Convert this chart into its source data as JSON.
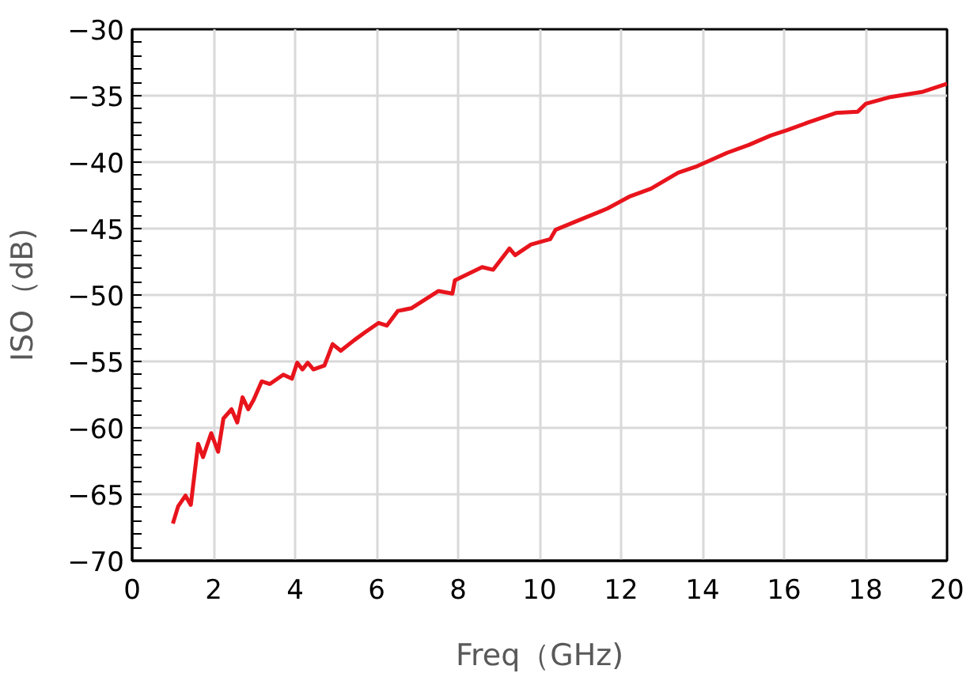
{
  "chart_data": {
    "type": "line",
    "xlabel": "Freq（GHz)",
    "ylabel": "ISO（dB)",
    "xlim": [
      0,
      20
    ],
    "ylim": [
      -70,
      -30
    ],
    "xticks": [
      0,
      2,
      4,
      6,
      8,
      10,
      12,
      14,
      16,
      18,
      20
    ],
    "yticks": [
      -70,
      -65,
      -60,
      -55,
      -50,
      -45,
      -40,
      -35,
      -30
    ],
    "grid": true,
    "marker": "none",
    "line_style": "solid",
    "series": [
      {
        "color": "#e8141c",
        "x": [
          1.0,
          1.13,
          1.31,
          1.44,
          1.62,
          1.74,
          1.94,
          2.11,
          2.24,
          2.44,
          2.58,
          2.71,
          2.85,
          2.98,
          3.18,
          3.38,
          3.71,
          3.92,
          4.05,
          4.18,
          4.31,
          4.45,
          4.72,
          4.92,
          5.12,
          5.45,
          5.72,
          6.05,
          6.25,
          6.52,
          6.85,
          7.52,
          7.86,
          7.92,
          8.59,
          8.86,
          9.26,
          9.4,
          9.79,
          10.26,
          10.39,
          10.86,
          11.66,
          12.2,
          12.73,
          13.4,
          13.87,
          14.6,
          15.14,
          15.67,
          16.07,
          16.6,
          17.27,
          17.81,
          18.01,
          18.61,
          19.41,
          20.0
        ],
        "values": [
          -67.2,
          -65.9,
          -65.1,
          -65.8,
          -61.2,
          -62.2,
          -60.4,
          -61.8,
          -59.3,
          -58.6,
          -59.6,
          -57.7,
          -58.6,
          -57.9,
          -56.5,
          -56.7,
          -56.0,
          -56.3,
          -55.1,
          -55.6,
          -55.1,
          -55.6,
          -55.3,
          -53.7,
          -54.2,
          -53.4,
          -52.8,
          -52.1,
          -52.3,
          -51.2,
          -51.0,
          -49.7,
          -49.9,
          -48.9,
          -47.9,
          -48.1,
          -46.5,
          -47.0,
          -46.2,
          -45.8,
          -45.1,
          -44.5,
          -43.5,
          -42.6,
          -42.0,
          -40.8,
          -40.3,
          -39.3,
          -38.7,
          -38.0,
          -37.6,
          -37.0,
          -36.3,
          -36.2,
          -35.6,
          -35.1,
          -34.7,
          -34.1
        ]
      }
    ]
  }
}
